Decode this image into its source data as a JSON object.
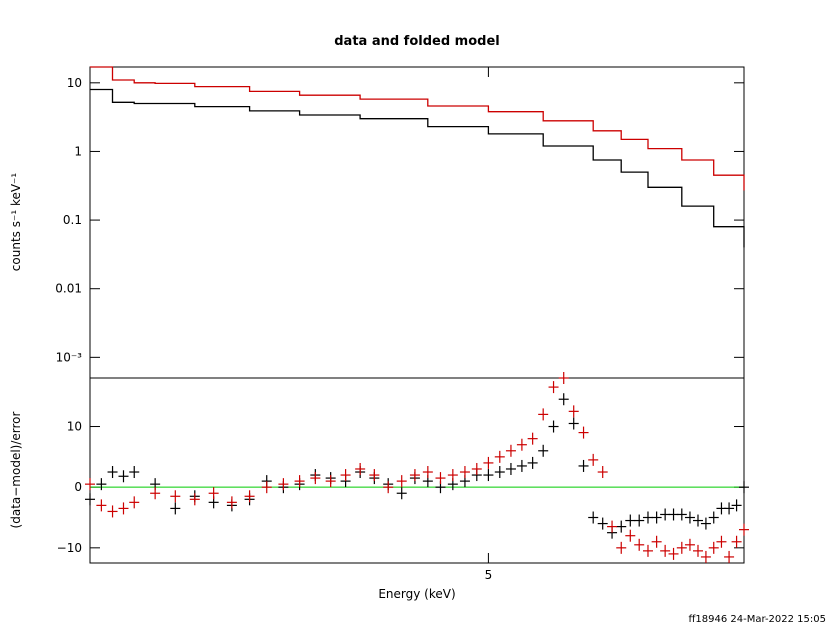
{
  "title": "data and folded model",
  "footer": "ff18946 24-Mar-2022 15:05",
  "colors": {
    "black_series": "#000000",
    "red_series": "#cc0000",
    "zero_line": "#00cc00",
    "frame": "#000000"
  },
  "chart_data": [
    {
      "type": "line",
      "panel": "top",
      "title": "data and folded model",
      "ylabel": "counts s⁻¹ keV⁻¹",
      "yscale": "log",
      "ylim": [
        0.0005,
        17
      ],
      "yticks": [
        {
          "value": 10,
          "label": "10"
        },
        {
          "value": 1,
          "label": "1"
        },
        {
          "value": 0.1,
          "label": "0.1"
        },
        {
          "value": 0.01,
          "label": "0.01"
        },
        {
          "value": 0.001,
          "label": "10⁻³"
        }
      ],
      "xscale": "log",
      "xlim": [
        2.5,
        7.8
      ],
      "x": [
        2.5,
        2.6,
        2.7,
        2.8,
        3.0,
        3.3,
        3.6,
        4.0,
        4.5,
        5.0,
        5.5,
        6.0,
        6.3,
        6.6,
        7.0,
        7.4,
        7.8
      ],
      "series": [
        {
          "values": [
            8.0,
            5.2,
            5.0,
            5.0,
            4.5,
            3.9,
            3.4,
            3.0,
            2.3,
            1.8,
            1.2,
            0.75,
            0.5,
            0.3,
            0.16,
            0.08,
            0.04
          ]
        },
        {
          "values": [
            17.0,
            11.0,
            10.0,
            9.8,
            8.8,
            7.5,
            6.6,
            5.8,
            4.6,
            3.8,
            2.8,
            2.0,
            1.5,
            1.1,
            0.75,
            0.45,
            0.27
          ]
        }
      ]
    },
    {
      "type": "scatter",
      "panel": "bottom",
      "ylabel": "(data−model)/error",
      "xlabel": "Energy (keV)",
      "xscale": "log",
      "xlim": [
        2.5,
        7.8
      ],
      "xticks": [
        {
          "value": 5,
          "label": "5"
        }
      ],
      "ylim": [
        -12.5,
        18
      ],
      "yticks": [
        {
          "value": 10,
          "label": "10"
        },
        {
          "value": 0,
          "label": "0"
        },
        {
          "value": -10,
          "label": "−10"
        }
      ],
      "zero_line": 0,
      "x": [
        2.5,
        2.55,
        2.6,
        2.65,
        2.7,
        2.8,
        2.9,
        3.0,
        3.1,
        3.2,
        3.3,
        3.4,
        3.5,
        3.6,
        3.7,
        3.8,
        3.9,
        4.0,
        4.1,
        4.2,
        4.3,
        4.4,
        4.5,
        4.6,
        4.7,
        4.8,
        4.9,
        5.0,
        5.1,
        5.2,
        5.3,
        5.4,
        5.5,
        5.6,
        5.7,
        5.8,
        5.9,
        6.0,
        6.1,
        6.2,
        6.3,
        6.4,
        6.5,
        6.6,
        6.7,
        6.8,
        6.9,
        7.0,
        7.1,
        7.2,
        7.3,
        7.4,
        7.5,
        7.6,
        7.7,
        7.8
      ],
      "series": [
        {
          "values": [
            -2.0,
            0.5,
            2.5,
            1.8,
            2.5,
            0.5,
            -3.5,
            -1.5,
            -2.5,
            -3.0,
            -2.0,
            1.0,
            0.0,
            0.5,
            2.0,
            1.5,
            1.0,
            2.5,
            1.5,
            0.5,
            -1.0,
            1.5,
            1.0,
            0.0,
            0.5,
            1.0,
            2.0,
            2.0,
            2.5,
            3.0,
            3.5,
            4.0,
            6.0,
            10.0,
            14.5,
            10.5,
            3.5,
            -5.0,
            -6.0,
            -7.5,
            -6.5,
            -5.5,
            -5.5,
            -5.0,
            -5.0,
            -4.5,
            -4.5,
            -4.5,
            -5.0,
            -5.5,
            -6.0,
            -5.0,
            -3.5,
            -3.5,
            -3.0,
            0.0
          ]
        },
        {
          "values": [
            0.5,
            -3.0,
            -4.0,
            -3.5,
            -2.5,
            -1.0,
            -1.5,
            -2.0,
            -1.0,
            -2.5,
            -1.5,
            0.0,
            0.5,
            1.0,
            1.5,
            1.0,
            2.0,
            3.0,
            2.0,
            0.0,
            1.0,
            2.0,
            2.5,
            1.5,
            2.0,
            2.5,
            3.0,
            4.0,
            5.0,
            6.0,
            7.0,
            8.0,
            12.0,
            16.5,
            18.0,
            12.5,
            9.0,
            4.5,
            2.5,
            -6.5,
            -10.0,
            -8.0,
            -9.5,
            -10.5,
            -9.0,
            -10.5,
            -11.0,
            -10.0,
            -9.5,
            -10.5,
            -11.5,
            -10.0,
            -9.0,
            -11.5,
            -9.0,
            -7.0
          ]
        }
      ]
    }
  ]
}
